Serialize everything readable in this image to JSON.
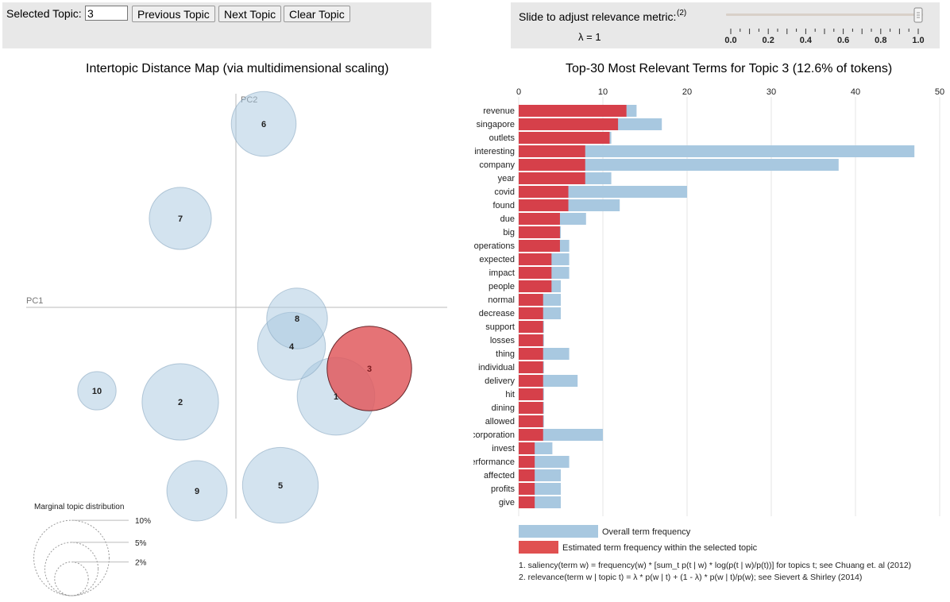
{
  "controls": {
    "selected_topic_label": "Selected Topic:",
    "selected_topic_value": "3",
    "previous_label": "Previous Topic",
    "next_label": "Next Topic",
    "clear_label": "Clear Topic",
    "slider_label": "Slide to adjust relevance metric:",
    "slider_note": "(2)",
    "lambda_text": "λ = 1",
    "lambda_value": 1,
    "slider_ticks": [
      "0.0",
      "0.2",
      "0.4",
      "0.6",
      "0.8",
      "1.0"
    ]
  },
  "left_title": "Intertopic Distance Map (via multidimensional scaling)",
  "right_title": "Top-30 Most Relevant Terms for Topic 3 (12.6% of tokens)",
  "chart_data": [
    {
      "type": "scatter",
      "title": "Intertopic Distance Map (via multidimensional scaling)",
      "xlabel": "PC1",
      "ylabel": "PC2",
      "selected_topic": "3",
      "topics": [
        {
          "id": "1",
          "x": 0.18,
          "y": -0.16,
          "size": 10.6
        },
        {
          "id": "2",
          "x": -0.1,
          "y": -0.17,
          "size": 10.3
        },
        {
          "id": "3",
          "x": 0.24,
          "y": -0.11,
          "size": 12.6
        },
        {
          "id": "4",
          "x": 0.1,
          "y": -0.07,
          "size": 8.1
        },
        {
          "id": "5",
          "x": 0.08,
          "y": -0.32,
          "size": 10.1
        },
        {
          "id": "6",
          "x": 0.05,
          "y": 0.33,
          "size": 7.4
        },
        {
          "id": "7",
          "x": -0.1,
          "y": 0.16,
          "size": 6.8
        },
        {
          "id": "8",
          "x": 0.11,
          "y": -0.02,
          "size": 6.5
        },
        {
          "id": "9",
          "x": -0.07,
          "y": -0.33,
          "size": 6.4
        },
        {
          "id": "10",
          "x": -0.25,
          "y": -0.15,
          "size": 2.6
        }
      ],
      "legend": {
        "title": "Marginal topic distribution",
        "items": [
          {
            "label": "2%",
            "value": 2
          },
          {
            "label": "5%",
            "value": 5
          },
          {
            "label": "10%",
            "value": 10
          }
        ]
      }
    },
    {
      "type": "bar",
      "title": "Top-30 Most Relevant Terms for Topic 3 (12.6% of tokens)",
      "xlim": [
        0,
        50
      ],
      "xticks": [
        0,
        10,
        20,
        30,
        40,
        50
      ],
      "categories": [
        "revenue",
        "singapore",
        "outlets",
        "interesting",
        "company",
        "year",
        "covid",
        "found",
        "due",
        "big",
        "operations",
        "expected",
        "impact",
        "people",
        "normal",
        "decrease",
        "support",
        "losses",
        "thing",
        "individual",
        "delivery",
        "hit",
        "dining",
        "allowed",
        "corporation",
        "invest",
        "performance",
        "affected",
        "profits",
        "give"
      ],
      "series": [
        {
          "name": "Overall term frequency",
          "color": "#a8c8e0",
          "values": [
            14,
            17,
            11,
            47,
            38,
            11,
            20,
            12,
            8,
            5,
            6,
            6,
            6,
            5,
            5,
            5,
            3,
            3,
            6,
            3,
            7,
            3,
            3,
            3,
            10,
            4,
            6,
            5,
            5,
            5
          ]
        },
        {
          "name": "Estimated term frequency within the selected topic",
          "color": "#d6404a",
          "values": [
            12.8,
            11.8,
            10.8,
            7.9,
            7.9,
            7.9,
            5.9,
            5.9,
            4.9,
            4.9,
            4.9,
            3.9,
            3.9,
            3.9,
            2.9,
            2.9,
            2.9,
            2.9,
            2.9,
            2.9,
            2.9,
            2.9,
            2.9,
            2.9,
            2.9,
            1.9,
            1.9,
            1.9,
            1.9,
            1.9
          ]
        }
      ],
      "footnotes": [
        "1. saliency(term w) = frequency(w) * [sum_t p(t | w) * log(p(t | w)/p(t))] for topics t; see Chuang et. al (2012)",
        "2. relevance(term w | topic t) = λ * p(w | t) + (1 - λ) * p(w | t)/p(w); see Sievert & Shirley (2014)"
      ]
    }
  ],
  "colors": {
    "panel_bg": "#e8e8e8",
    "circle_fill": "#a8c8e0",
    "circle_stroke": "#7a9cb8",
    "selected_fill": "#e05a5e",
    "selected_stroke": "#5a1a1e",
    "bar_overall": "#a8c8e0",
    "bar_topic": "#d6404a",
    "axis_line": "#bbbbbb"
  }
}
